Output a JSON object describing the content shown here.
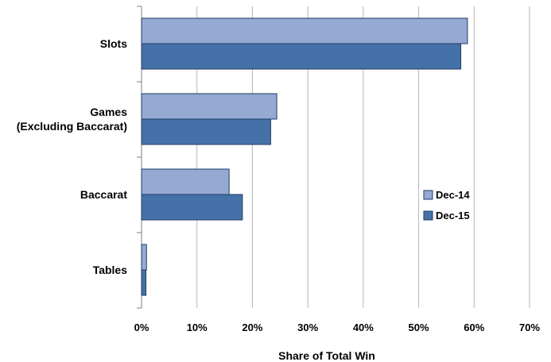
{
  "chart_data": {
    "type": "bar",
    "orientation": "horizontal",
    "title": "",
    "categories": [
      "Slots",
      "Games (Excluding Baccarat)",
      "Baccarat",
      "Tables"
    ],
    "category_lines": [
      [
        "Slots"
      ],
      [
        "Games",
        "(Excluding Baccarat)"
      ],
      [
        "Baccarat"
      ],
      [
        "Tables"
      ]
    ],
    "series": [
      {
        "name": "Dec-14",
        "values": [
          58.8,
          24.4,
          15.8,
          0.9
        ],
        "color": "#95a9d3"
      },
      {
        "name": "Dec-15",
        "values": [
          57.6,
          23.3,
          18.2,
          0.8
        ],
        "color": "#4472a8"
      }
    ],
    "xlabel": "Share of Total Win",
    "ylabel": "",
    "xlim": [
      0,
      70
    ],
    "xticks": [
      "0%",
      "10%",
      "20%",
      "30%",
      "40%",
      "50%",
      "60%",
      "70%"
    ],
    "grid": true,
    "legend_position": "right"
  }
}
